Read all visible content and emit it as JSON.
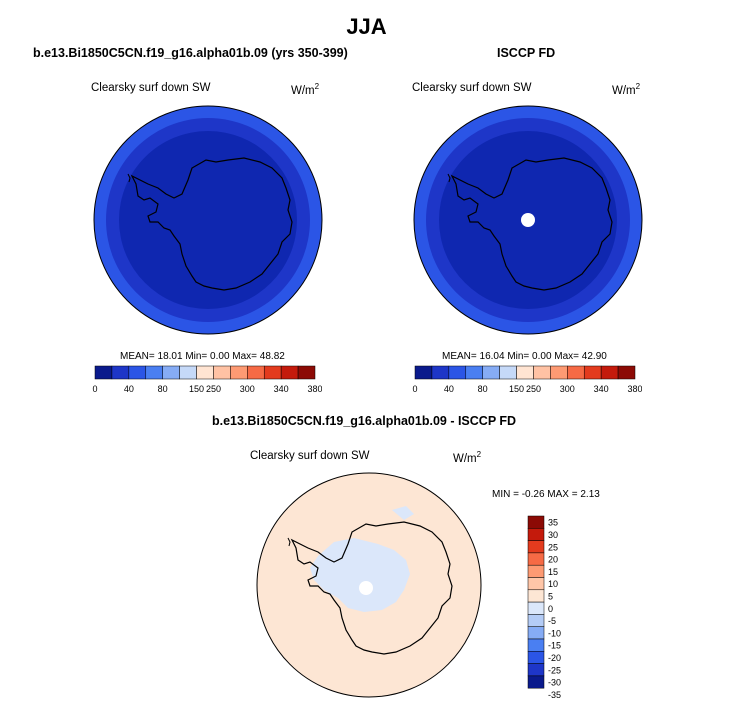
{
  "title": "JJA",
  "panels": [
    {
      "header": "b.e13.Bi1850C5CN.f19_g16.alpha01b.09 (yrs 350-399)",
      "variable": "Clearsky surf down SW",
      "units_base": "W/m",
      "units_exp": "2",
      "stats": "MEAN=  18.01  Min=   0.00  Max=  48.82"
    },
    {
      "header": "ISCCP FD",
      "variable": "Clearsky surf down SW",
      "units_base": "W/m",
      "units_exp": "2",
      "stats": "MEAN=  16.04  Min=   0.00  Max=  42.90"
    },
    {
      "header": "b.e13.Bi1850C5CN.f19_g16.alpha01b.09 - ISCCP FD",
      "variable": "Clearsky surf down SW",
      "units_base": "W/m",
      "units_exp": "2",
      "stats": "MIN =  -0.26 MAX =   2.13"
    }
  ],
  "colorbar_top": {
    "colors": [
      "#0a1a8c",
      "#1e36c8",
      "#2b55e6",
      "#4a7ff2",
      "#86acf5",
      "#c5d9f8",
      "#ffe4d2",
      "#ffc2a4",
      "#fd9a73",
      "#f66a45",
      "#e33b1e",
      "#c41a0c",
      "#8c0a05"
    ],
    "labels": [
      "0",
      "40",
      "80",
      "150",
      "250",
      "300",
      "340",
      "380"
    ]
  },
  "colorbar_diff": {
    "colors": [
      "#0a1a8c",
      "#1e36c8",
      "#2b55e6",
      "#4a7ff2",
      "#86acf5",
      "#b4ccf6",
      "#dbe7fa",
      "#fde6d4",
      "#ffc6a8",
      "#fd9a73",
      "#f66a45",
      "#e33b1e",
      "#c41a0c",
      "#8c0a05"
    ],
    "labels": [
      "35",
      "30",
      "25",
      "20",
      "15",
      "10",
      "5",
      "0",
      "-5",
      "-10",
      "-15",
      "-20",
      "-25",
      "-30",
      "-35"
    ]
  },
  "map_colors": {
    "outer_ring": "#2b55e6",
    "middle_ring": "#1e36c8",
    "inner": "#0f27b0",
    "pole_hole": "#ffffff",
    "diff_background": "#fde6d4",
    "diff_negative": "#dbe7fa"
  }
}
